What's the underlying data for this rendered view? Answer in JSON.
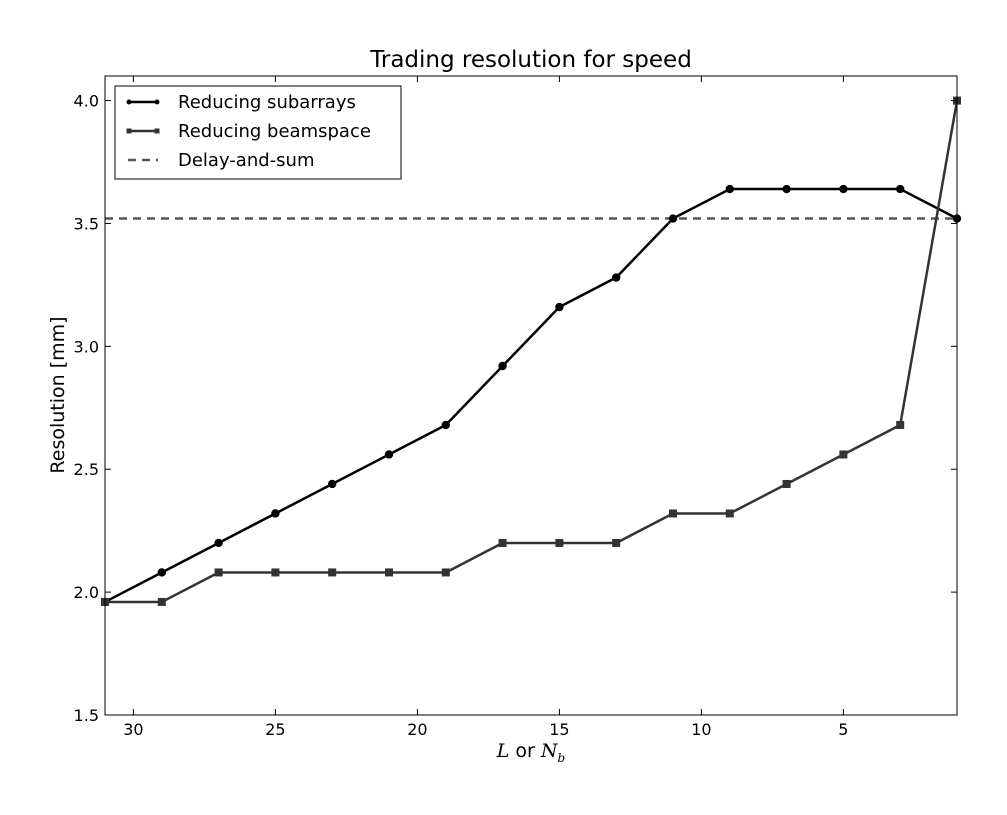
{
  "chart_data": {
    "type": "line",
    "title": "Trading resolution for speed",
    "xlabel_parts": {
      "var1": "L",
      "connector": " or ",
      "var2": "N",
      "var2_sub": "b"
    },
    "ylabel": "Resolution [mm]",
    "xlim": [
      31,
      1
    ],
    "ylim": [
      1.5,
      4.1
    ],
    "x_ticks": [
      30,
      25,
      20,
      15,
      10,
      5
    ],
    "y_ticks": [
      1.5,
      2.0,
      2.5,
      3.0,
      3.5,
      4.0
    ],
    "x_tick_labels": [
      "30",
      "25",
      "20",
      "15",
      "10",
      "5"
    ],
    "y_tick_labels": [
      "1.5",
      "2.0",
      "2.5",
      "3.0",
      "3.5",
      "4.0"
    ],
    "grid": false,
    "legend_position": "upper-left",
    "series": [
      {
        "name": "Reducing subarrays",
        "color": "#000000",
        "marker": "circle",
        "x": [
          31,
          29,
          27,
          25,
          23,
          21,
          19,
          17,
          15,
          13,
          11,
          9,
          7,
          5,
          3,
          1
        ],
        "y": [
          1.96,
          2.08,
          2.2,
          2.32,
          2.44,
          2.56,
          2.68,
          2.92,
          3.16,
          3.28,
          3.52,
          3.64,
          3.64,
          3.64,
          3.64,
          3.52
        ]
      },
      {
        "name": "Reducing beamspace",
        "color": "#333333",
        "marker": "square",
        "x": [
          31,
          29,
          27,
          25,
          23,
          21,
          19,
          17,
          15,
          13,
          11,
          9,
          7,
          5,
          3,
          1
        ],
        "y": [
          1.96,
          1.96,
          2.08,
          2.08,
          2.08,
          2.08,
          2.08,
          2.2,
          2.2,
          2.2,
          2.32,
          2.32,
          2.44,
          2.56,
          2.68,
          4.0
        ]
      }
    ],
    "reference_lines": [
      {
        "name": "Delay-and-sum",
        "y": 3.52,
        "color": "#555555",
        "style": "dashed"
      }
    ]
  }
}
